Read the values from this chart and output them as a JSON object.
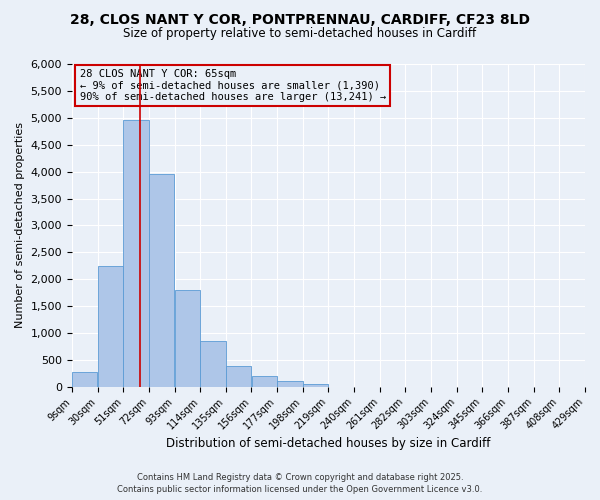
{
  "title_line1": "28, CLOS NANT Y COR, PONTPRENNAU, CARDIFF, CF23 8LD",
  "title_line2": "Size of property relative to semi-detached houses in Cardiff",
  "xlabel": "Distribution of semi-detached houses by size in Cardiff",
  "ylabel": "Number of semi-detached properties",
  "bin_labels": [
    "9sqm",
    "30sqm",
    "51sqm",
    "72sqm",
    "93sqm",
    "114sqm",
    "135sqm",
    "156sqm",
    "177sqm",
    "198sqm",
    "219sqm",
    "240sqm",
    "261sqm",
    "282sqm",
    "303sqm",
    "324sqm",
    "345sqm",
    "366sqm",
    "387sqm",
    "408sqm",
    "429sqm"
  ],
  "bin_edges": [
    9,
    30,
    51,
    72,
    93,
    114,
    135,
    156,
    177,
    198,
    219,
    240,
    261,
    282,
    303,
    324,
    345,
    366,
    387,
    408,
    429
  ],
  "bar_heights": [
    270,
    2250,
    4950,
    3950,
    1800,
    850,
    390,
    210,
    100,
    60,
    0,
    0,
    0,
    0,
    0,
    0,
    0,
    0,
    0,
    0
  ],
  "bar_color": "#aec6e8",
  "bar_edgecolor": "#5b9bd5",
  "vline_x": 65,
  "vline_color": "#cc0000",
  "ylim": [
    0,
    6000
  ],
  "yticks": [
    0,
    500,
    1000,
    1500,
    2000,
    2500,
    3000,
    3500,
    4000,
    4500,
    5000,
    5500,
    6000
  ],
  "bg_color": "#eaf0f8",
  "annotation_line1": "28 CLOS NANT Y COR: 65sqm",
  "annotation_line2": "← 9% of semi-detached houses are smaller (1,390)",
  "annotation_line3": "90% of semi-detached houses are larger (13,241) →",
  "annotation_box_edgecolor": "#cc0000",
  "footer1": "Contains HM Land Registry data © Crown copyright and database right 2025.",
  "footer2": "Contains public sector information licensed under the Open Government Licence v3.0."
}
